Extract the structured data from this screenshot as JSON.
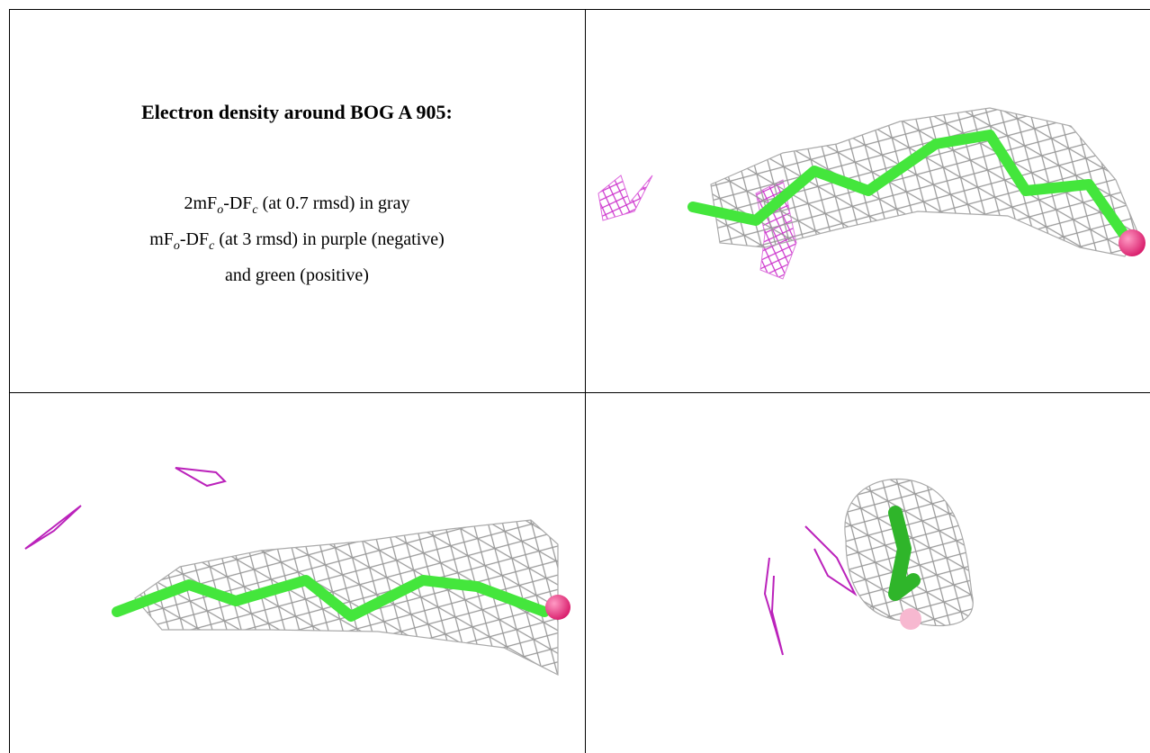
{
  "caption": {
    "title": "Electron density around BOG A 905:",
    "lines": [
      [
        {
          "text": "2mF"
        },
        {
          "text": "o",
          "sub": true
        },
        {
          "text": "-DF"
        },
        {
          "text": "c",
          "sub": true
        },
        {
          "text": " (at 0.7 rmsd) in gray"
        }
      ],
      [
        {
          "text": "mF"
        },
        {
          "text": "o",
          "sub": true
        },
        {
          "text": "-DF"
        },
        {
          "text": "c",
          "sub": true
        },
        {
          "text": " (at 3 rmsd) in purple (negative)"
        }
      ],
      [
        {
          "text": "and green (positive)"
        }
      ]
    ]
  }
}
